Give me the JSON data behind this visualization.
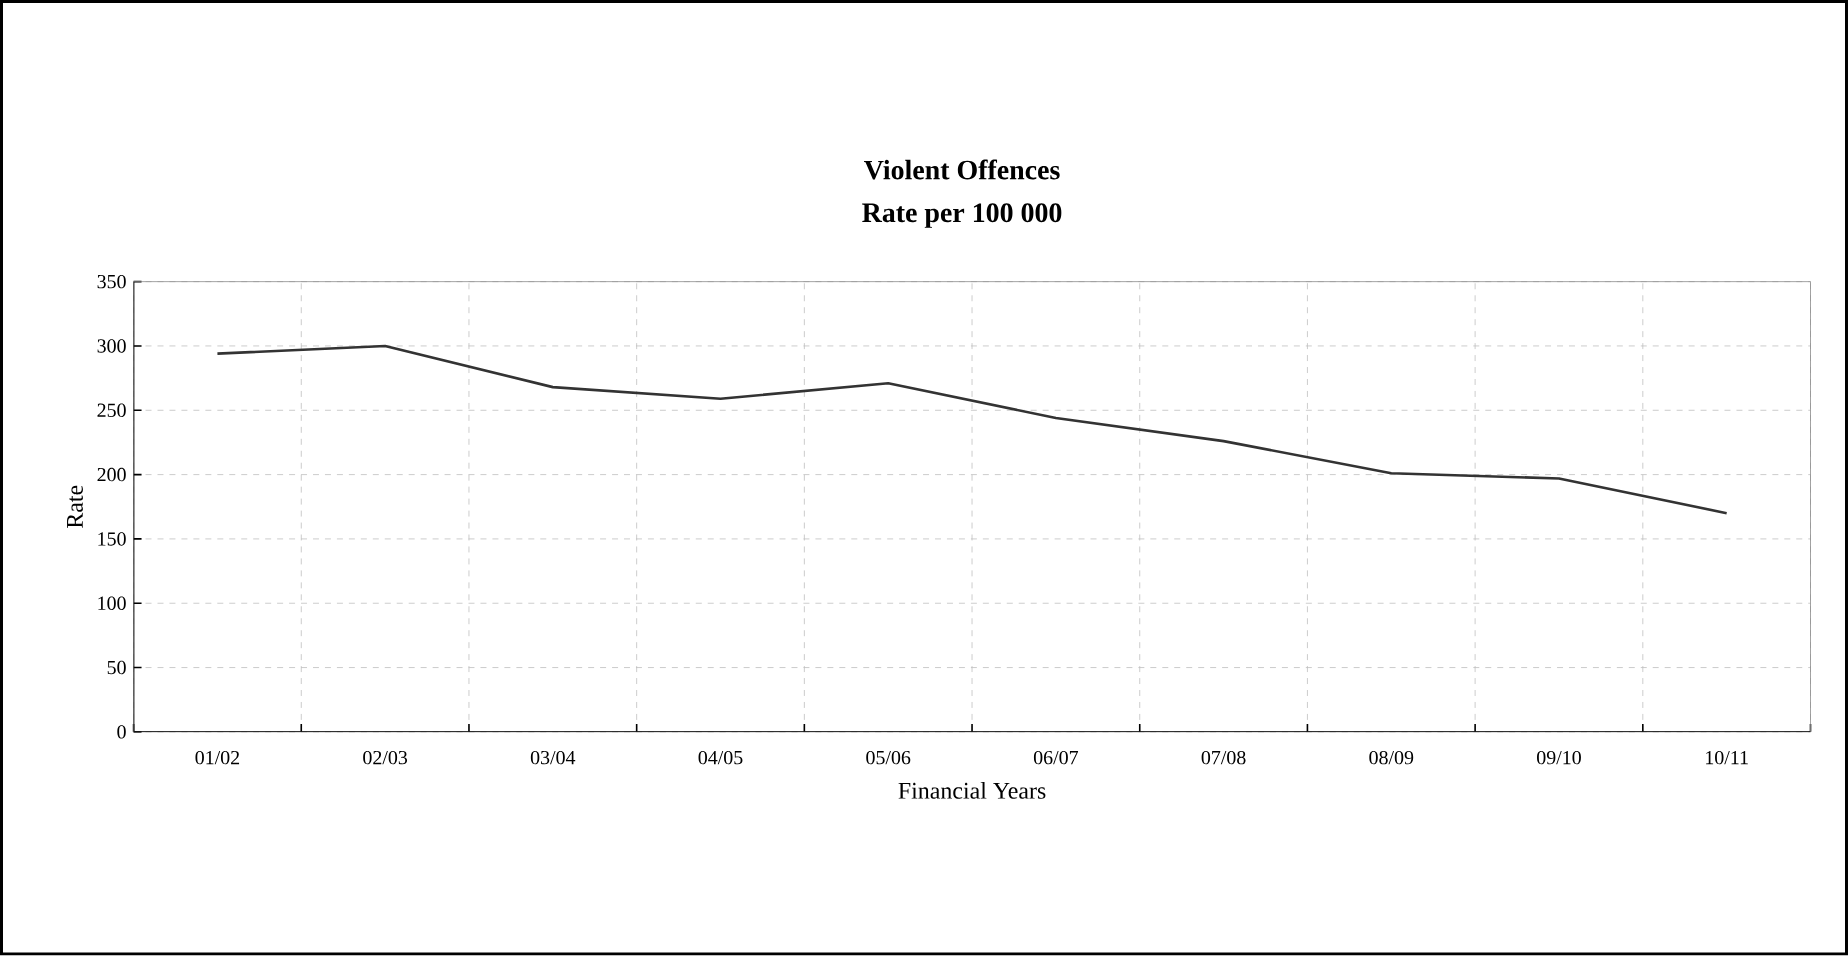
{
  "chart_data": {
    "type": "line",
    "title": "Violent Offences",
    "subtitle": "Rate per 100 000",
    "xlabel": "Financial Years",
    "ylabel": "Rate",
    "categories": [
      "01/02",
      "02/03",
      "03/04",
      "04/05",
      "05/06",
      "06/07",
      "07/08",
      "08/09",
      "09/10",
      "10/11"
    ],
    "values": [
      294,
      300,
      268,
      259,
      271,
      244,
      226,
      201,
      197,
      170
    ],
    "color": "#333333",
    "ylim": [
      0,
      350
    ],
    "yticks": [
      0,
      50,
      100,
      150,
      200,
      250,
      300,
      350
    ],
    "grid": true,
    "marker": "none",
    "line_style": "solid"
  }
}
